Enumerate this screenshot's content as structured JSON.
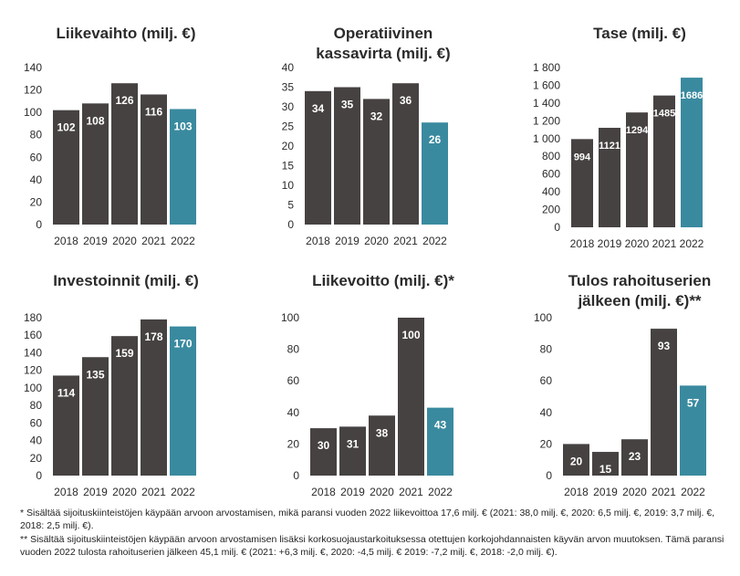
{
  "colors": {
    "dark": "#474242",
    "accent": "#3a8a9f",
    "text": "#2b2b2b",
    "label": "#ffffff"
  },
  "chart_data": [
    {
      "type": "bar",
      "title": [
        "Liikevaihto (milj. €)"
      ],
      "categories": [
        "2018",
        "2019",
        "2020",
        "2021",
        "2022"
      ],
      "values": [
        102,
        108,
        126,
        116,
        103
      ],
      "ylim": [
        0,
        140
      ],
      "yticks": [
        "0",
        "20",
        "40",
        "60",
        "80",
        "100",
        "120",
        "140"
      ],
      "grid": false,
      "highlight_last": true
    },
    {
      "type": "bar",
      "title": [
        "Operatiivinen",
        "kassavirta (milj. €)"
      ],
      "categories": [
        "2018",
        "2019",
        "2020",
        "2021",
        "2022"
      ],
      "values": [
        34,
        35,
        32,
        36,
        26
      ],
      "ylim": [
        0,
        40
      ],
      "yticks": [
        "0",
        "5",
        "10",
        "15",
        "20",
        "25",
        "30",
        "35",
        "40"
      ],
      "grid": false,
      "highlight_last": true
    },
    {
      "type": "bar",
      "title": [
        "Tase (milj. €)"
      ],
      "categories": [
        "2018",
        "2019",
        "2020",
        "2021",
        "2022"
      ],
      "values": [
        994,
        1121,
        1294,
        1485,
        1686
      ],
      "ylim": [
        0,
        1800
      ],
      "yticks": [
        "0",
        "200",
        "400",
        "600",
        "800",
        "1 000",
        "1 200",
        "1 400",
        "1 600",
        "1 800"
      ],
      "grid": false,
      "highlight_last": true
    },
    {
      "type": "bar",
      "title": [
        "Investoinnit (milj. €)"
      ],
      "categories": [
        "2018",
        "2019",
        "2020",
        "2021",
        "2022"
      ],
      "values": [
        114,
        135,
        159,
        178,
        170
      ],
      "ylim": [
        0,
        180
      ],
      "yticks": [
        "0",
        "20",
        "40",
        "60",
        "80",
        "100",
        "120",
        "140",
        "160",
        "180"
      ],
      "grid": false,
      "highlight_last": true
    },
    {
      "type": "bar",
      "title": [
        "Liikevoitto (milj. €)*"
      ],
      "categories": [
        "2018",
        "2019",
        "2020",
        "2021",
        "2022"
      ],
      "values": [
        30,
        31,
        38,
        100,
        43
      ],
      "ylim": [
        0,
        100
      ],
      "yticks": [
        "0",
        "20",
        "40",
        "60",
        "80",
        "100"
      ],
      "grid": false,
      "highlight_last": true
    },
    {
      "type": "bar",
      "title": [
        "Tulos rahoituserien",
        "jälkeen (milj. €)**"
      ],
      "categories": [
        "2018",
        "2019",
        "2020",
        "2021",
        "2022"
      ],
      "values": [
        20,
        15,
        23,
        93,
        57
      ],
      "ylim": [
        0,
        100
      ],
      "yticks": [
        "0",
        "20",
        "40",
        "60",
        "80",
        "100"
      ],
      "grid": false,
      "highlight_last": true
    }
  ],
  "footnotes": {
    "fn1": "* Sisältää sijoituskiinteistöjen käypään arvoon arvostamisen, mikä paransi vuoden 2022 liikevoittoa 17,6 milj. € (2021: 38,0 milj. €, 2020: 6,5 milj. €, 2019: 3,7 milj. €, 2018: 2,5 milj. €).",
    "fn2": "** Sisältää sijoituskiinteistöjen käypään arvoon arvostamisen lisäksi korkosuojaustarkoituksessa otettujen korkojohdannaisten käyvän arvon muutoksen. Tämä paransi vuoden 2022 tulosta rahoituserien jälkeen 45,1 milj. € (2021: +6,3 milj. €, 2020: -4,5 milj. € 2019: -7,2 milj. €, 2018: -2,0 milj. €)."
  }
}
